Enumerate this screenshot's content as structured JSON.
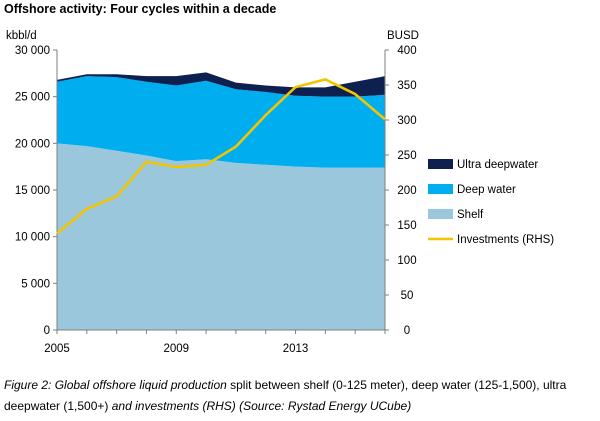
{
  "title": "Offshore activity: Four cycles within a decade",
  "caption": {
    "part1": "Figure 2: Global offshore liquid production",
    "part2": " split between shelf (0-125 meter), deep water (125-1,500), ultra deepwater (1,500+) ",
    "part3": "and investments (RHS) (Source: Rystad Energy UCube)"
  },
  "chart_data": {
    "type": "area",
    "y_unit_left": "kbbl/d",
    "y_unit_right": "BUSD",
    "x_tick_labels": [
      "2005",
      "2009",
      "2013"
    ],
    "x": [
      2005,
      2006,
      2007,
      2008,
      2009,
      2010,
      2011,
      2012,
      2013,
      2014,
      2015,
      2016
    ],
    "xlim": [
      2005,
      2016
    ],
    "ylim_left": [
      0,
      30000
    ],
    "ylim_right": [
      0,
      400
    ],
    "y_ticks_left": [
      "0",
      "5 000",
      "10 000",
      "15 000",
      "20 000",
      "25 000",
      "30 000"
    ],
    "y_ticks_right": [
      "0",
      "50",
      "100",
      "150",
      "200",
      "250",
      "300",
      "350",
      "400"
    ],
    "series": [
      {
        "name": "Shelf",
        "axis": "left",
        "values": [
          20000,
          19700,
          19200,
          18700,
          18100,
          18300,
          17900,
          17700,
          17500,
          17400,
          17400,
          17400
        ],
        "color": "#9bc7dd"
      },
      {
        "name": "Deep water",
        "axis": "left",
        "values": [
          6600,
          7500,
          7900,
          7900,
          8100,
          8400,
          7900,
          7800,
          7600,
          7600,
          7600,
          7800
        ],
        "color": "#00aeef"
      },
      {
        "name": "Ultra deepwater",
        "axis": "left",
        "values": [
          200,
          200,
          300,
          600,
          1000,
          900,
          700,
          700,
          900,
          1000,
          1600,
          2000
        ],
        "color": "#0d2050"
      },
      {
        "name": "Investments (RHS)",
        "axis": "right",
        "type": "line",
        "values": [
          138,
          173,
          191,
          240,
          233,
          236,
          262,
          307,
          347,
          358,
          337,
          301
        ],
        "color": "#f2c500"
      }
    ],
    "legend": [
      {
        "name": "Ultra deepwater",
        "color": "#0d2050",
        "kind": "box"
      },
      {
        "name": "Deep water",
        "color": "#00aeef",
        "kind": "box"
      },
      {
        "name": "Shelf",
        "color": "#9bc7dd",
        "kind": "box"
      },
      {
        "name": "Investments (RHS)",
        "color": "#f2c500",
        "kind": "line"
      }
    ],
    "legend_position": "right",
    "grid": false
  }
}
